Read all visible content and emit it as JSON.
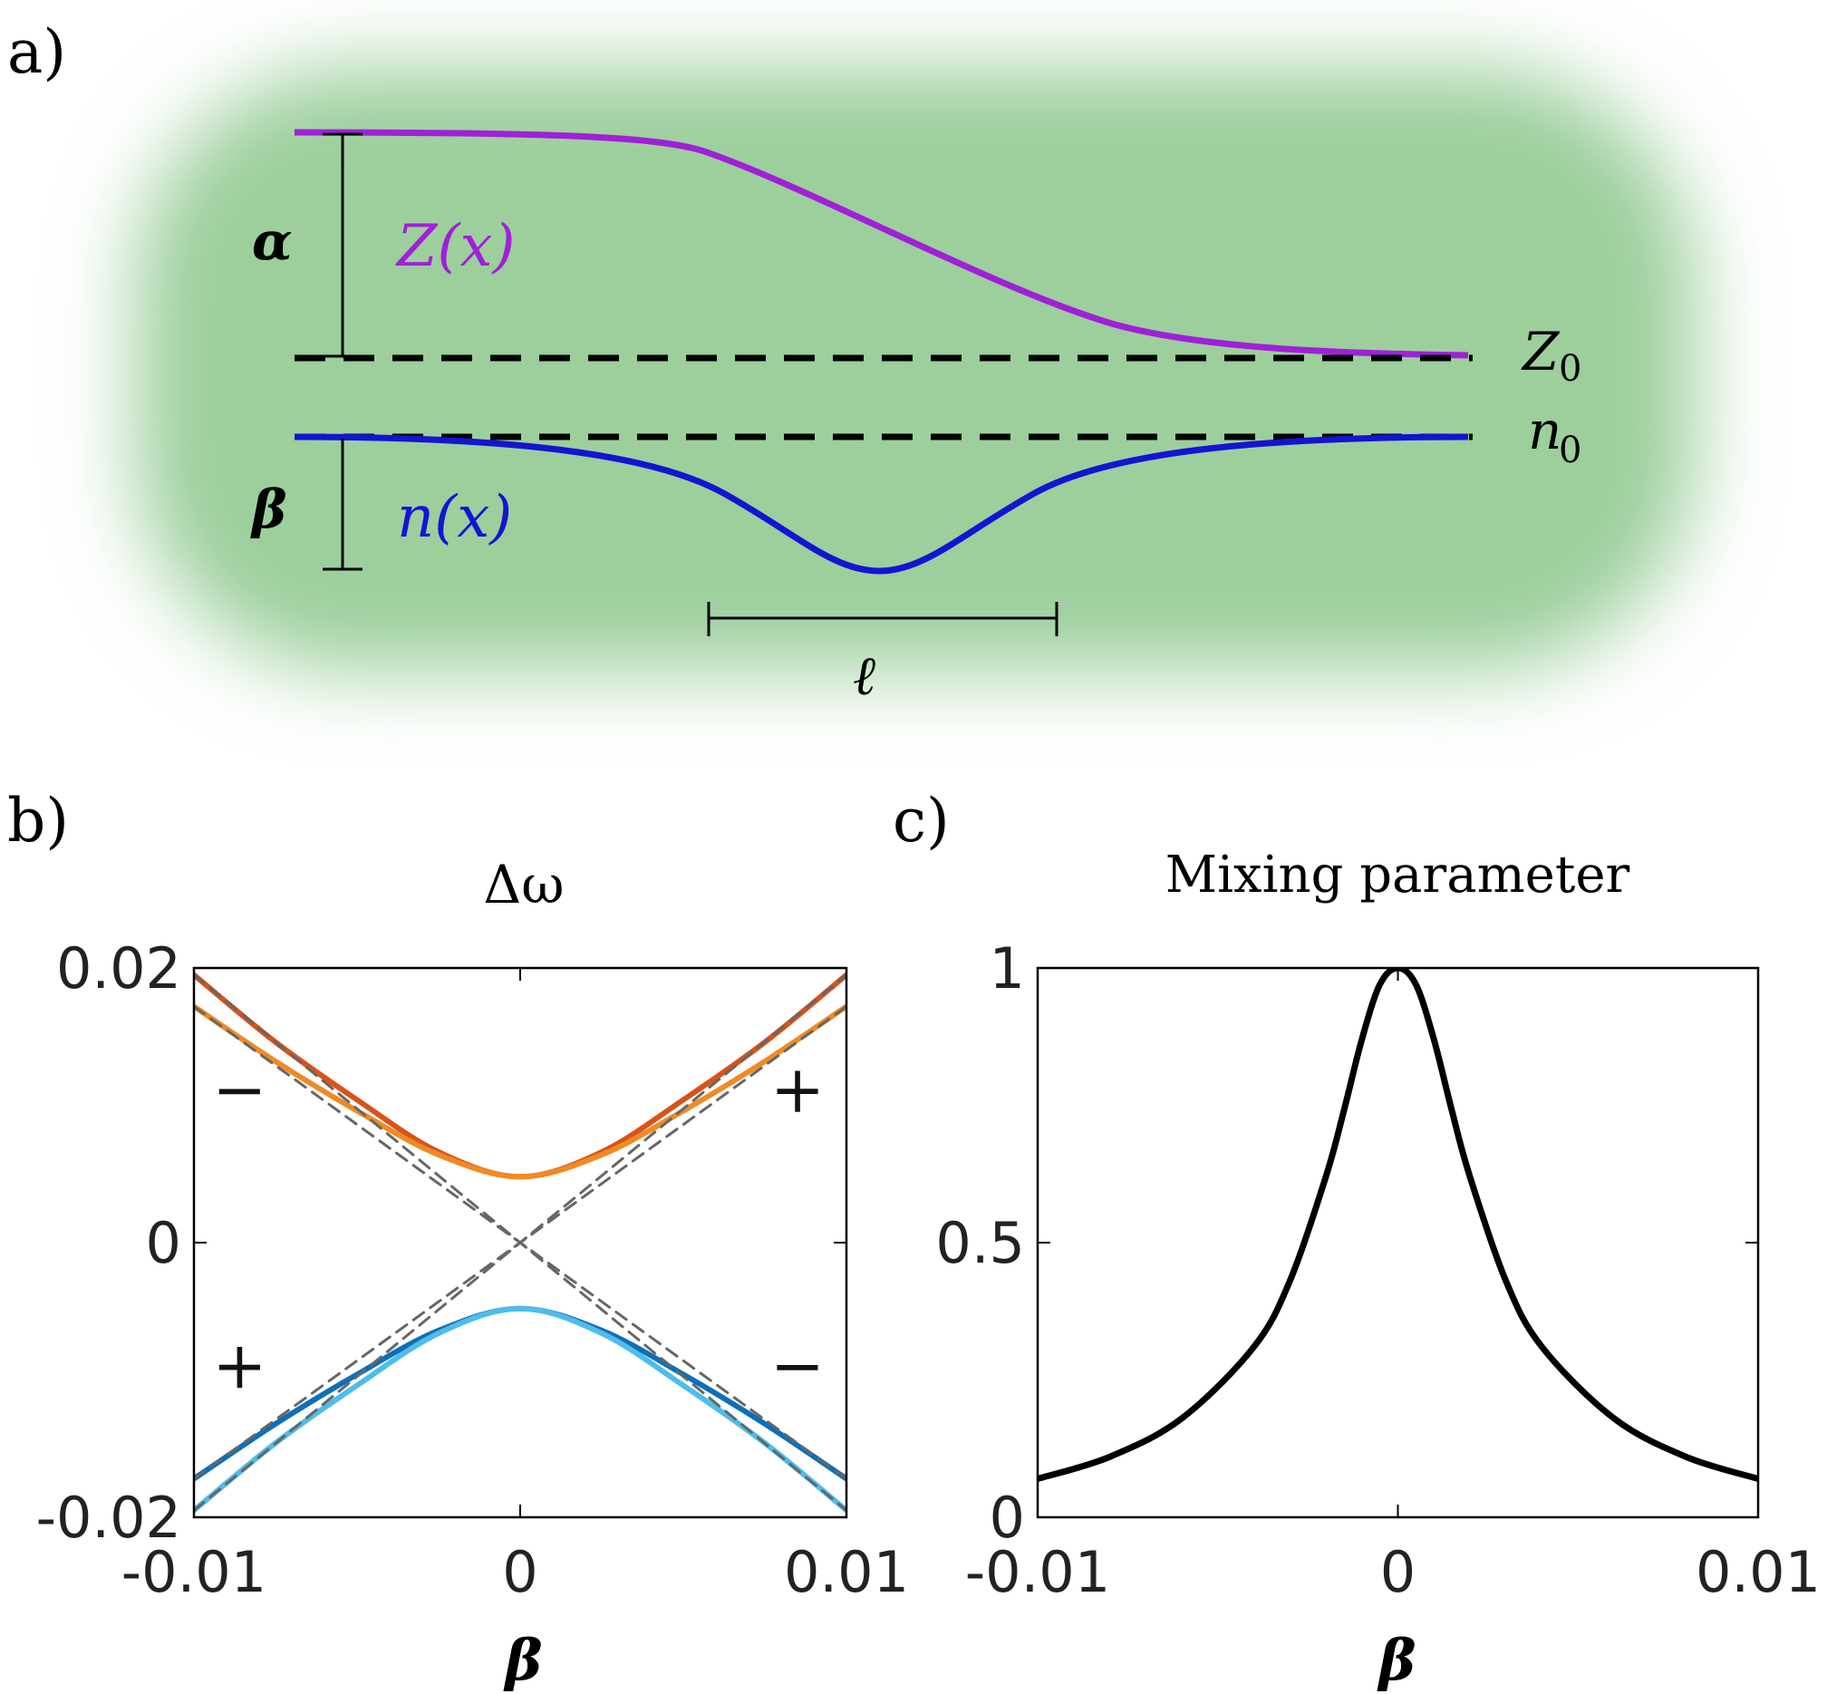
{
  "panel_a": {
    "label": "a)",
    "curve_z_label": "Z(x)",
    "curve_n_label": "n(x)",
    "z0_label": "Z",
    "z0_sub": "0",
    "n0_label": "n",
    "n0_sub": "0",
    "alpha_label": "α",
    "beta_label": "β",
    "ell_label": "ℓ",
    "colors": {
      "z_curve": "#a020d8",
      "n_curve": "#1414d2",
      "background": "#9ccf9c",
      "dashed": "#000000"
    }
  },
  "chart_data": [
    {
      "id": "b",
      "type": "line",
      "panel_label": "b)",
      "title": "Δω",
      "xlabel": "β",
      "ylabel": "",
      "xlim": [
        -0.01,
        0.01
      ],
      "ylim": [
        -0.02,
        0.02
      ],
      "xticks": [
        -0.01,
        0,
        0.01
      ],
      "xtick_labels": [
        "-0.01",
        "0",
        "0.01"
      ],
      "yticks": [
        -0.02,
        0,
        0.02
      ],
      "ytick_labels": [
        "-0.02",
        "0",
        "0.02"
      ],
      "grid": false,
      "series": [
        {
          "color": "#d95319",
          "style": "solid",
          "x": [
            -0.01,
            -0.0075,
            -0.005,
            -0.0025,
            0,
            0.0025,
            0.005,
            0.0075,
            0.01
          ],
          "y": [
            0.0195,
            0.0146,
            0.0104,
            0.0066,
            0.0048,
            0.0066,
            0.0104,
            0.0146,
            0.0195
          ]
        },
        {
          "color": "#f08a24",
          "style": "solid",
          "x": [
            -0.01,
            -0.0075,
            -0.005,
            -0.0025,
            0,
            0.0025,
            0.005,
            0.0075,
            0.01
          ],
          "y": [
            0.0172,
            0.0132,
            0.0096,
            0.0064,
            0.0048,
            0.0064,
            0.0096,
            0.0132,
            0.0172
          ]
        },
        {
          "color": "#0d6fb8",
          "style": "solid",
          "x": [
            -0.01,
            -0.0075,
            -0.005,
            -0.0025,
            0,
            0.0025,
            0.005,
            0.0075,
            0.01
          ],
          "y": [
            -0.0172,
            -0.0132,
            -0.0096,
            -0.0064,
            -0.0048,
            -0.0064,
            -0.0096,
            -0.0132,
            -0.0172
          ]
        },
        {
          "color": "#4ebdea",
          "style": "solid",
          "x": [
            -0.01,
            -0.0075,
            -0.005,
            -0.0025,
            0,
            0.0025,
            0.005,
            0.0075,
            0.01
          ],
          "y": [
            -0.0195,
            -0.0146,
            -0.0104,
            -0.0066,
            -0.0048,
            -0.0066,
            -0.0104,
            -0.0146,
            -0.0195
          ]
        },
        {
          "color": "#666666",
          "style": "dashed",
          "x": [
            -0.01,
            0,
            0.01
          ],
          "y": [
            0.0195,
            0,
            -0.0195
          ]
        },
        {
          "color": "#666666",
          "style": "dashed",
          "x": [
            -0.01,
            0,
            0.01
          ],
          "y": [
            0.0172,
            0,
            -0.0172
          ]
        },
        {
          "color": "#666666",
          "style": "dashed",
          "x": [
            -0.01,
            0,
            0.01
          ],
          "y": [
            -0.0195,
            0,
            0.0195
          ]
        },
        {
          "color": "#666666",
          "style": "dashed",
          "x": [
            -0.01,
            0,
            0.01
          ],
          "y": [
            -0.0172,
            0,
            0.0172
          ]
        }
      ],
      "annotations": [
        {
          "text": "−",
          "x": -0.0086,
          "y": 0.0095
        },
        {
          "text": "+",
          "x": 0.0085,
          "y": 0.0095
        },
        {
          "text": "+",
          "x": -0.0086,
          "y": -0.0106
        },
        {
          "text": "−",
          "x": 0.0085,
          "y": -0.0106
        }
      ]
    },
    {
      "id": "c",
      "type": "line",
      "panel_label": "c)",
      "title": "Mixing parameter",
      "xlabel": "β",
      "ylabel": "",
      "xlim": [
        -0.01,
        0.01
      ],
      "ylim": [
        0,
        1
      ],
      "xticks": [
        -0.01,
        0,
        0.01
      ],
      "xtick_labels": [
        "-0.01",
        "0",
        "0.01"
      ],
      "yticks": [
        0,
        0.5,
        1
      ],
      "ytick_labels": [
        "0",
        "0.5",
        "1"
      ],
      "grid": false,
      "series": [
        {
          "color": "#000000",
          "style": "solid",
          "x": [
            -0.01,
            -0.008,
            -0.006,
            -0.004,
            -0.003,
            -0.002,
            -0.0015,
            -0.001,
            -0.0005,
            0,
            0.0005,
            0.001,
            0.0015,
            0.002,
            0.003,
            0.004,
            0.006,
            0.008,
            0.01
          ],
          "y": [
            0.07,
            0.11,
            0.18,
            0.31,
            0.43,
            0.62,
            0.74,
            0.87,
            0.97,
            1.0,
            0.97,
            0.87,
            0.74,
            0.62,
            0.43,
            0.31,
            0.18,
            0.11,
            0.07
          ]
        }
      ]
    }
  ]
}
